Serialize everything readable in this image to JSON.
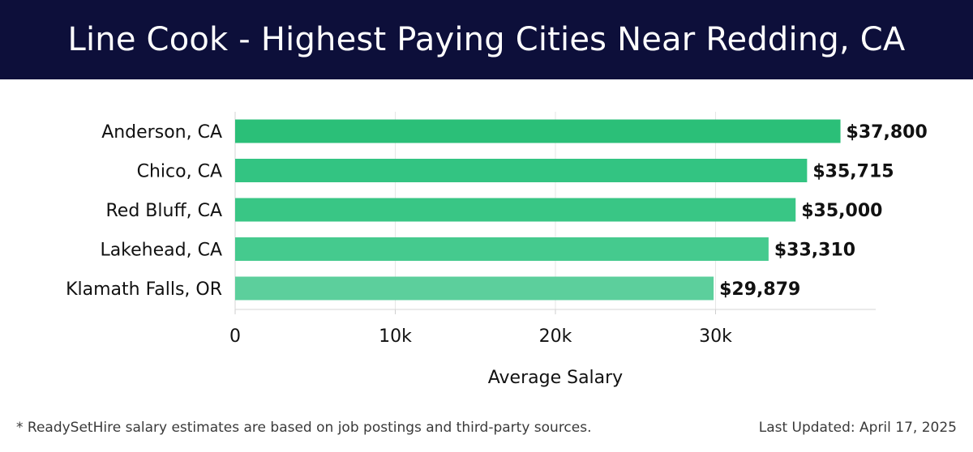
{
  "header": {
    "title": "Line Cook - Highest Paying Cities Near Redding, CA"
  },
  "footer": {
    "note": "* ReadySetHire salary estimates are based on job postings and third-party sources.",
    "updated": "Last Updated: April 17, 2025"
  },
  "colors": {
    "header_bg": "#0d0f3a",
    "bar_colors": [
      "#2bbf78",
      "#33c482",
      "#39c685",
      "#45ca8e",
      "#5ccf9c"
    ],
    "grid": "#e6e6e6"
  },
  "chart_data": {
    "type": "bar",
    "orientation": "horizontal",
    "categories": [
      "Anderson, CA",
      "Chico, CA",
      "Red Bluff, CA",
      "Lakehead, CA",
      "Klamath Falls, OR"
    ],
    "values": [
      37800,
      35715,
      35000,
      33310,
      29879
    ],
    "value_labels": [
      "$37,800",
      "$35,715",
      "$35,000",
      "$33,310",
      "$29,879"
    ],
    "xlabel": "Average Salary",
    "ylabel": "",
    "xlim": [
      0,
      40000
    ],
    "x_ticks": [
      0,
      10000,
      20000,
      30000
    ],
    "x_tick_labels": [
      "0",
      "10k",
      "20k",
      "30k"
    ],
    "grid": true
  }
}
